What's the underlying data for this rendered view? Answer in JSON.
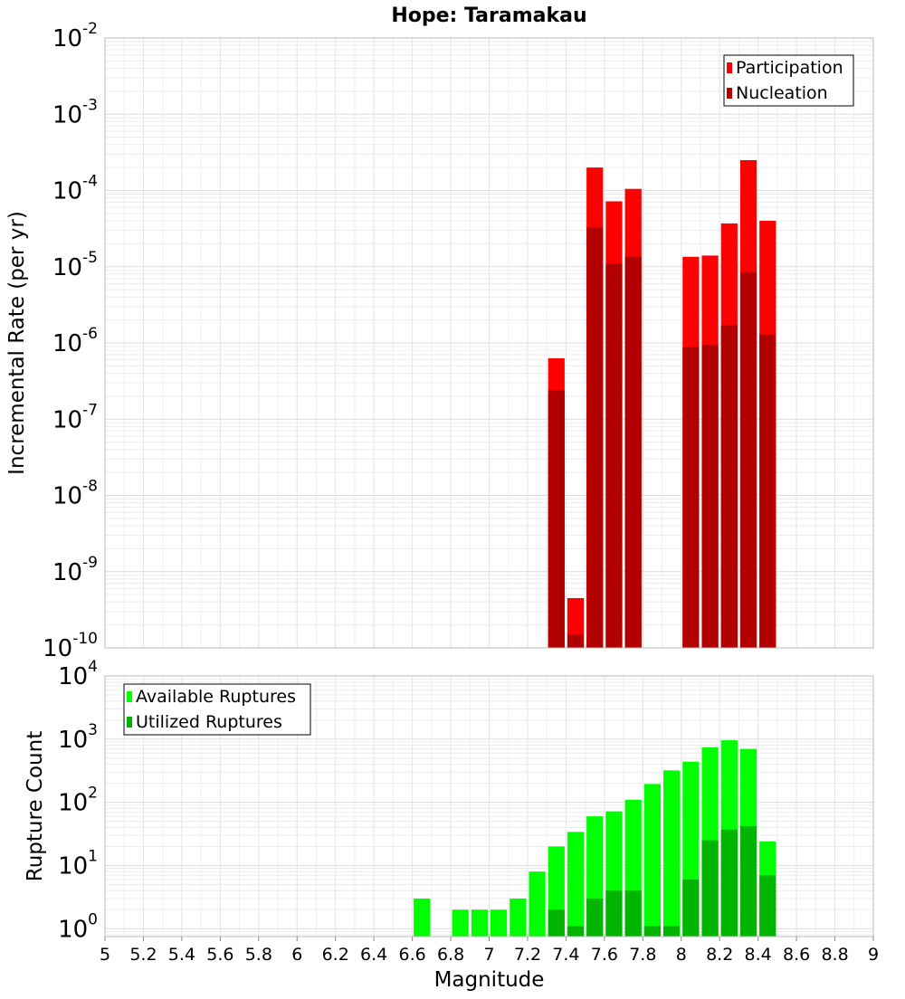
{
  "chart_data": [
    {
      "type": "bar",
      "title": "Hope: Taramakau",
      "xlabel": "",
      "ylabel": "Incremental Rate (per yr)",
      "yscale": "log",
      "ylim": [
        1e-10,
        0.01
      ],
      "xlim": [
        5,
        9
      ],
      "ytick_exponents": [
        "-2",
        "-3",
        "-4",
        "-5",
        "-6",
        "-7",
        "-8",
        "-9",
        "-10"
      ],
      "ytick_base": "10",
      "grid": true,
      "legend_position": "top-right",
      "bar_width": 0.1,
      "x": [
        7.35,
        7.45,
        7.55,
        7.65,
        7.75,
        8.05,
        8.15,
        8.25,
        8.35,
        8.45
      ],
      "series": [
        {
          "name": "Participation",
          "color": "#ff0000",
          "values": [
            6.3e-07,
            4.5e-10,
            0.0002,
            7.2e-05,
            0.000105,
            1.35e-05,
            1.4e-05,
            3.7e-05,
            0.00025,
            4e-05
          ]
        },
        {
          "name": "Nucleation",
          "color": "#b20000",
          "values": [
            2.4e-07,
            1.5e-10,
            3.3e-05,
            1.1e-05,
            1.35e-05,
            8.8e-07,
            9.5e-07,
            1.7e-06,
            8.5e-06,
            1.3e-06
          ]
        }
      ]
    },
    {
      "type": "bar",
      "title": "",
      "xlabel": "Magnitude",
      "ylabel": "Rupture Count",
      "yscale": "log",
      "ylim": [
        0.75,
        10000
      ],
      "xlim": [
        5,
        9
      ],
      "ytick_exponents": [
        "4",
        "3",
        "2",
        "1",
        "0"
      ],
      "ytick_base": "10",
      "x_ticks": [
        "5",
        "5.2",
        "5.4",
        "5.6",
        "5.8",
        "6",
        "6.2",
        "6.4",
        "6.6",
        "6.8",
        "7",
        "7.2",
        "7.4",
        "7.6",
        "7.8",
        "8",
        "8.2",
        "8.4",
        "8.6",
        "8.8",
        "9"
      ],
      "grid": true,
      "legend_position": "top-left",
      "bar_width": 0.1,
      "x": [
        6.65,
        6.85,
        6.95,
        7.05,
        7.15,
        7.25,
        7.35,
        7.45,
        7.55,
        7.65,
        7.75,
        7.85,
        7.95,
        8.05,
        8.15,
        8.25,
        8.35,
        8.45
      ],
      "series": [
        {
          "name": "Available Ruptures",
          "color": "#00ff00",
          "values": [
            3,
            2,
            2,
            2,
            3,
            8,
            20,
            34,
            60,
            72,
            110,
            195,
            320,
            440,
            740,
            960,
            700,
            24
          ]
        },
        {
          "name": "Utilized Ruptures",
          "color": "#00b400",
          "values": [
            null,
            null,
            null,
            null,
            null,
            null,
            2,
            1.1,
            3,
            4,
            4,
            1.1,
            1.1,
            6,
            25,
            37,
            42,
            7
          ]
        }
      ]
    }
  ]
}
